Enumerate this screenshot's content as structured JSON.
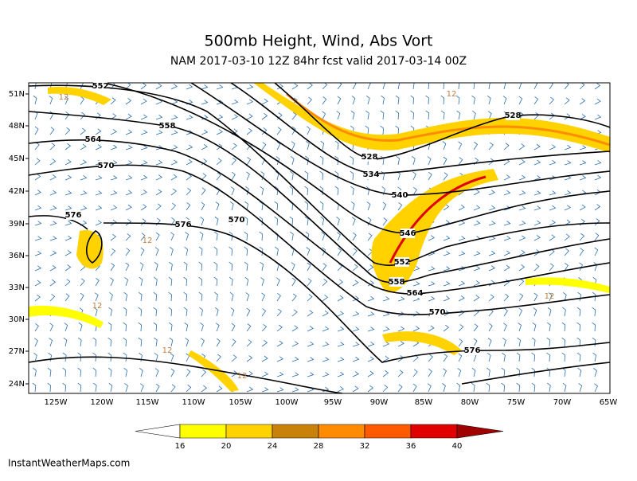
{
  "header": {
    "title": "500mb Height, Wind, Abs Vort",
    "subtitle": "NAM 2017-03-10 12Z 84hr fcst valid 2017-03-14 00Z"
  },
  "map": {
    "lat_labels": [
      "51N",
      "48N",
      "45N",
      "42N",
      "39N",
      "36N",
      "33N",
      "30N",
      "27N",
      "24N"
    ],
    "lon_labels": [
      "125W",
      "120W",
      "115W",
      "110W",
      "105W",
      "100W",
      "95W",
      "90W",
      "85W",
      "80W",
      "75W",
      "70W",
      "65W"
    ],
    "contour_labels": [
      "552",
      "558",
      "564",
      "570",
      "576",
      "576",
      "570",
      "528",
      "534",
      "540",
      "546",
      "552",
      "558",
      "564",
      "570",
      "576",
      "528"
    ],
    "vort_labels": [
      "12",
      "12",
      "12",
      "12",
      "12",
      "12",
      "12"
    ]
  },
  "colorbar": {
    "labels": [
      16,
      20,
      24,
      28,
      32,
      36,
      40
    ],
    "colors": [
      "#ffffff",
      "#ffff00",
      "#ffd200",
      "#c8820a",
      "#ff8c00",
      "#ff5a00",
      "#e10000",
      "#a00000"
    ]
  },
  "footer": {
    "credit": "InstantWeatherMaps.com"
  }
}
